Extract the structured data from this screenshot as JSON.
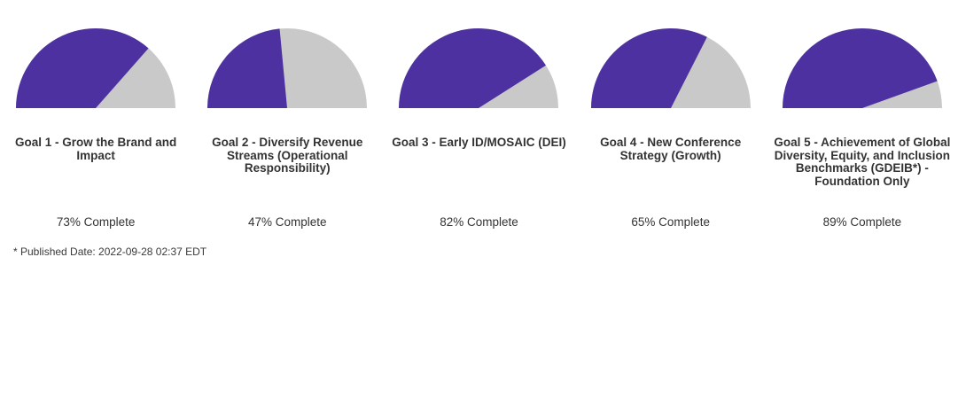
{
  "colors": {
    "complete": "#4E31A0",
    "remaining": "#C9C9C9",
    "title": "#333333",
    "label": "#333333",
    "footnote": "#3A3A3A"
  },
  "footnote": "* Published Date: 2022-09-28 02:37 EDT",
  "chart_data": [
    {
      "type": "pie",
      "shape": "semicircle",
      "title": "Goal 1 - Grow the Brand and Impact",
      "label": "73% Complete",
      "percent_complete": 73,
      "slices": [
        {
          "name": "Complete",
          "value": 73
        },
        {
          "name": "Remaining",
          "value": 27
        }
      ]
    },
    {
      "type": "pie",
      "shape": "semicircle",
      "title": "Goal 2 - Diversify Revenue Streams (Operational Responsibility)",
      "label": "47% Complete",
      "percent_complete": 47,
      "slices": [
        {
          "name": "Complete",
          "value": 47
        },
        {
          "name": "Remaining",
          "value": 53
        }
      ]
    },
    {
      "type": "pie",
      "shape": "semicircle",
      "title": "Goal 3 - Early ID/MOSAIC (DEI)",
      "label": "82% Complete",
      "percent_complete": 82,
      "slices": [
        {
          "name": "Complete",
          "value": 82
        },
        {
          "name": "Remaining",
          "value": 18
        }
      ]
    },
    {
      "type": "pie",
      "shape": "semicircle",
      "title": "Goal 4 - New Conference Strategy (Growth)",
      "label": "65% Complete",
      "percent_complete": 65,
      "slices": [
        {
          "name": "Complete",
          "value": 65
        },
        {
          "name": "Remaining",
          "value": 35
        }
      ]
    },
    {
      "type": "pie",
      "shape": "semicircle",
      "title": "Goal 5 - Achievement of Global Diversity, Equity, and Inclusion Benchmarks (GDEIB*) - Foundation Only",
      "label": "89% Complete",
      "percent_complete": 89,
      "slices": [
        {
          "name": "Complete",
          "value": 89
        },
        {
          "name": "Remaining",
          "value": 11
        }
      ]
    }
  ]
}
